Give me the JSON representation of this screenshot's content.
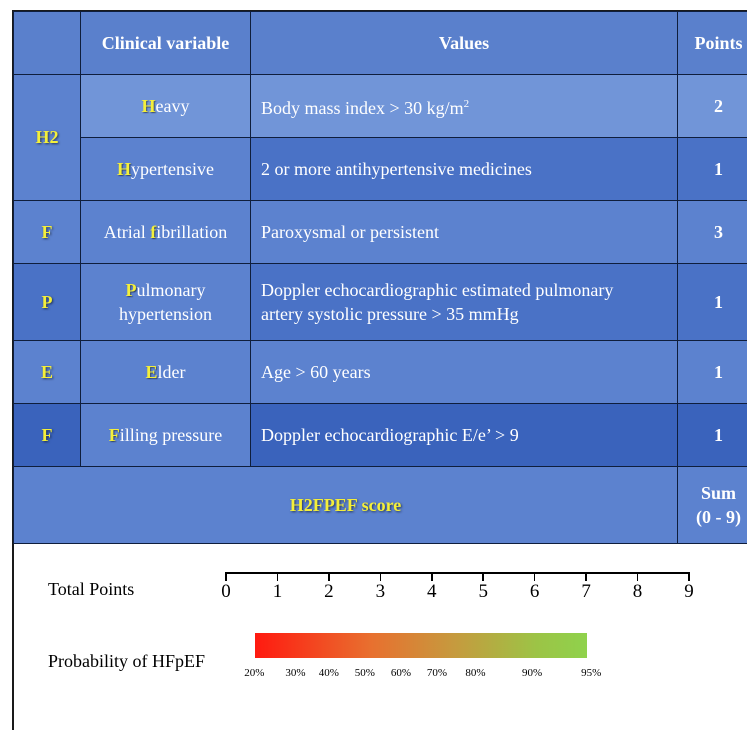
{
  "header": {
    "col0": "",
    "col1": "Clinical variable",
    "col2": "Values",
    "col3": "Points"
  },
  "rows": [
    {
      "code": "H2",
      "var_hl": "H",
      "var_rest": "eavy",
      "value": "Body mass index  >  30 kg/m",
      "value_sup": "2",
      "points": "2"
    },
    {
      "code": "",
      "var_hl": "H",
      "var_rest": "ypertensive",
      "value": "2 or more antihypertensive medicines",
      "points": "1"
    },
    {
      "code": "F",
      "var_pre": "Atrial ",
      "var_hl": "f",
      "var_rest": "ibrillation",
      "value": "Paroxysmal or persistent",
      "points": "3"
    },
    {
      "code": "P",
      "var_hl": "P",
      "var_rest": "ulmonary",
      "var_line2": "hypertension",
      "value": "Doppler echocardiographic estimated pulmonary",
      "value_line2": "artery systolic pressure  >  35 mmHg",
      "points": "1"
    },
    {
      "code": "E",
      "var_hl": "E",
      "var_rest": "lder",
      "value": "Age  >  60 years",
      "points": "1"
    },
    {
      "code": "F",
      "var_hl": "F",
      "var_rest": "illing pressure",
      "value": "Doppler echocardiographic E/e’  >  9",
      "points": "1"
    }
  ],
  "score": {
    "title": "H2FPEF score",
    "sum_line1": "Sum",
    "sum_line2": "(0 - 9)"
  },
  "nomogram": {
    "total_points_label": "Total Points",
    "total_points_ticks": [
      "0",
      "1",
      "2",
      "3",
      "4",
      "5",
      "6",
      "7",
      "8",
      "9"
    ],
    "probability_label": "Probability of HFpEF",
    "probability_ticks": [
      {
        "label": "20%",
        "points": 0.55
      },
      {
        "label": "30%",
        "points": 1.35
      },
      {
        "label": "40%",
        "points": 2.0
      },
      {
        "label": "50%",
        "points": 2.7
      },
      {
        "label": "60%",
        "points": 3.4
      },
      {
        "label": "70%",
        "points": 4.1
      },
      {
        "label": "80%",
        "points": 4.85
      },
      {
        "label": "90%",
        "points": 5.95
      },
      {
        "label": "95%",
        "points": 7.1
      }
    ],
    "gradient_colors": [
      "#ff1a10",
      "#e8702f",
      "#c69a3e",
      "#9cc446",
      "#8fd24c"
    ]
  }
}
